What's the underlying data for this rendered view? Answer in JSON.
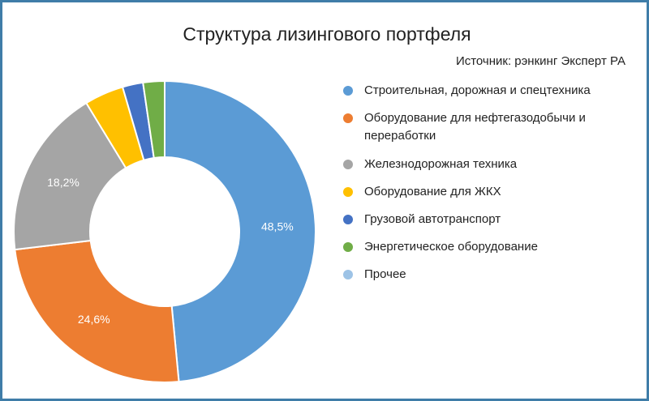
{
  "chart_data": {
    "type": "pie",
    "title": "Структура лизингового портфеля",
    "subtitle": "Источник: рэнкинг Эксперт РА",
    "legend_position": "right",
    "categories": [
      "Строительная, дорожная и спецтехника",
      "Оборудование для нефтегазодобычи и переработки",
      "Железнодорожная техника",
      "Оборудование для ЖКХ",
      "Грузовой автотранспорт",
      "Энергетическое оборудование",
      "Прочее"
    ],
    "values": [
      48.5,
      24.6,
      18.2,
      4.2,
      2.2,
      2.3,
      0.0
    ],
    "data_labels": [
      "48,5%",
      "24,6%",
      "18,2%",
      "",
      "",
      "",
      ""
    ],
    "colors": [
      "#5b9bd5",
      "#ed7d31",
      "#a5a5a5",
      "#ffc000",
      "#4472c4",
      "#70ad47",
      "#9dc3e6"
    ]
  }
}
